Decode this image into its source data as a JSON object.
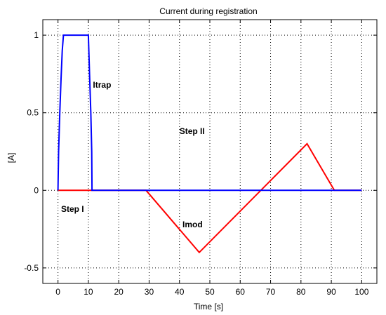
{
  "chart_data": {
    "type": "line",
    "title": "Current during registration",
    "xlabel": "Time [s]",
    "ylabel": "[A]",
    "xlim": [
      -5,
      105
    ],
    "ylim": [
      -0.6,
      1.1
    ],
    "grid": true,
    "legend": "none",
    "x_ticks": [
      0,
      10,
      20,
      30,
      40,
      50,
      60,
      70,
      80,
      90,
      100
    ],
    "x_tick_labels": [
      "0",
      "10",
      "20",
      "30",
      "40",
      "50",
      "60",
      "70",
      "80",
      "90",
      "100"
    ],
    "y_ticks": [
      -0.5,
      0,
      0.5,
      1
    ],
    "y_tick_labels": [
      "-0.5",
      "0",
      "0.5",
      "1"
    ],
    "series": [
      {
        "color": "#ff0000",
        "x": [
          0,
          29,
          46.5,
          82,
          91,
          100
        ],
        "y": [
          0,
          0,
          -0.4,
          0.3,
          0,
          0
        ]
      },
      {
        "color": "#0000ff",
        "x": [
          0,
          0.2,
          0.6,
          1,
          1.4,
          1.8,
          2,
          9.8,
          10,
          10.4,
          10.8,
          11.1,
          11.2,
          100
        ],
        "y": [
          0,
          0.25,
          0.5,
          0.72,
          0.9,
          1,
          1,
          1,
          1,
          0.75,
          0.5,
          0.25,
          0,
          0
        ]
      }
    ],
    "annotations": [
      {
        "text": "Itrap",
        "x": 11.5,
        "y": 0.68
      },
      {
        "text": "Step II",
        "x": 40,
        "y": 0.38
      },
      {
        "text": "Step I",
        "x": 1,
        "y": -0.12
      },
      {
        "text": "Imod",
        "x": 41,
        "y": -0.22
      }
    ]
  }
}
